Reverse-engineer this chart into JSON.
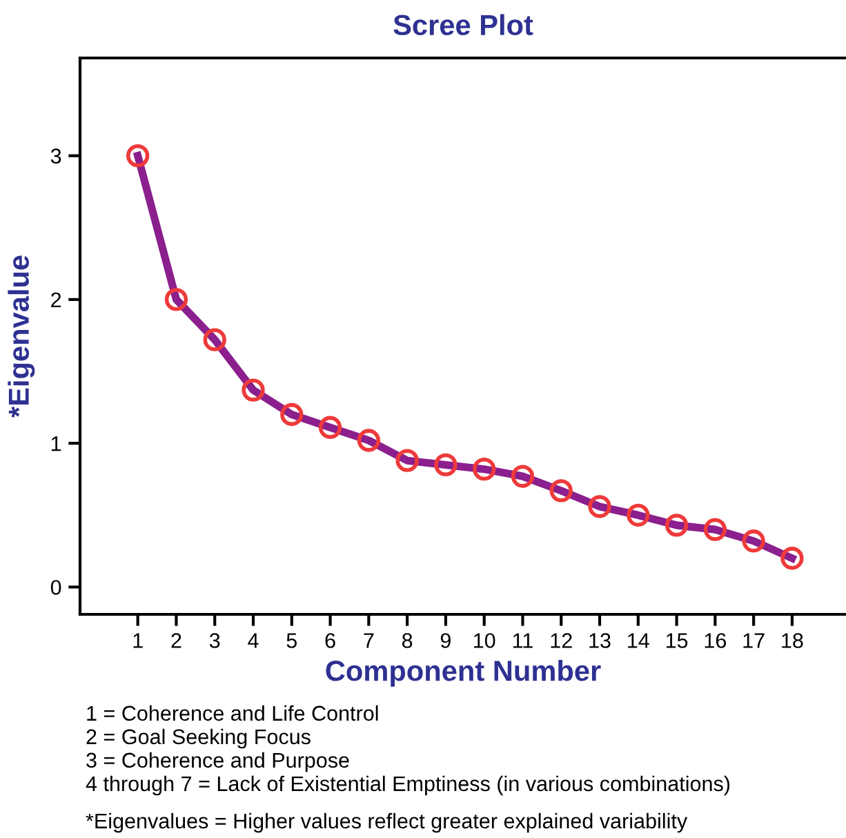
{
  "chart_data": {
    "type": "line",
    "title": "Scree Plot",
    "xlabel": "Component Number",
    "ylabel": "*Eigenvalue",
    "x": [
      1,
      2,
      3,
      4,
      5,
      6,
      7,
      8,
      9,
      10,
      11,
      12,
      13,
      14,
      15,
      16,
      17,
      18
    ],
    "series": [
      {
        "color": "#8b1f8e",
        "values": [
          3.0,
          2.0,
          1.72,
          1.37,
          1.2,
          1.11,
          1.02,
          0.88,
          0.85,
          0.82,
          0.77,
          0.67,
          0.56,
          0.5,
          0.43,
          0.4,
          0.32,
          0.2
        ]
      }
    ],
    "xlim": [
      -0.5,
      19.4
    ],
    "ylim": [
      -0.19,
      3.68
    ],
    "xticks": [
      1,
      2,
      3,
      4,
      5,
      6,
      7,
      8,
      9,
      10,
      11,
      12,
      13,
      14,
      15,
      16,
      17,
      18
    ],
    "yticks": [
      0,
      1,
      2,
      3
    ],
    "marker": "circle",
    "line_style": "solid",
    "grid": false,
    "legend": false,
    "annotations": [
      "1 = Coherence and Life Control",
      "2 = Goal Seeking Focus",
      "3 = Coherence and Purpose",
      "4 through 7 = Lack of Existential Emptiness (in various combinations)",
      "*Eigenvalues = Higher values reflect greater explained variability"
    ]
  }
}
